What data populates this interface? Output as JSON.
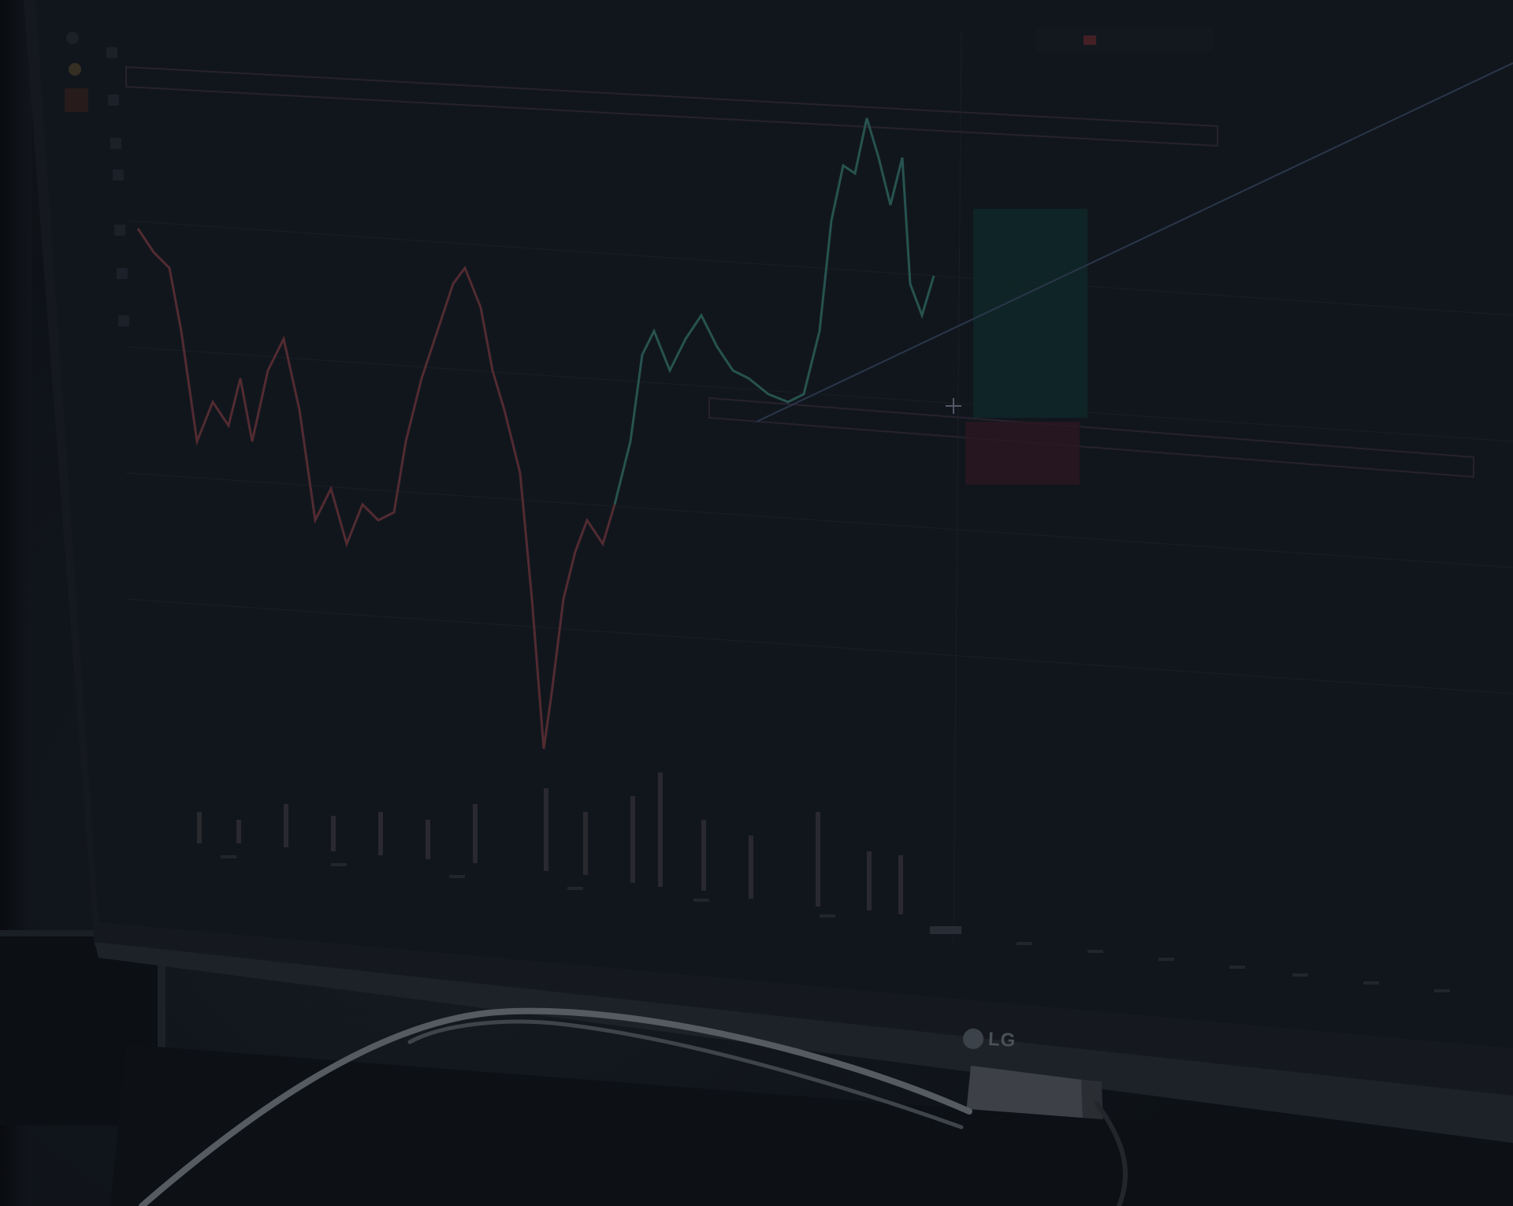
{
  "photo": {
    "subject": "trading-chart-on-monitor",
    "colors": {
      "background": "#0b0e13",
      "screen": "#11161d",
      "bezel": "#1c2128",
      "up_candle": "#2a5a55",
      "down_candle": "#5a2e34",
      "volume": "#3a3a3e",
      "drawing_line": "#3b4a62",
      "long_zone": "#0f2a2a",
      "short_zone": "#2e1720"
    }
  },
  "monitor": {
    "brand_label": "LG"
  }
}
